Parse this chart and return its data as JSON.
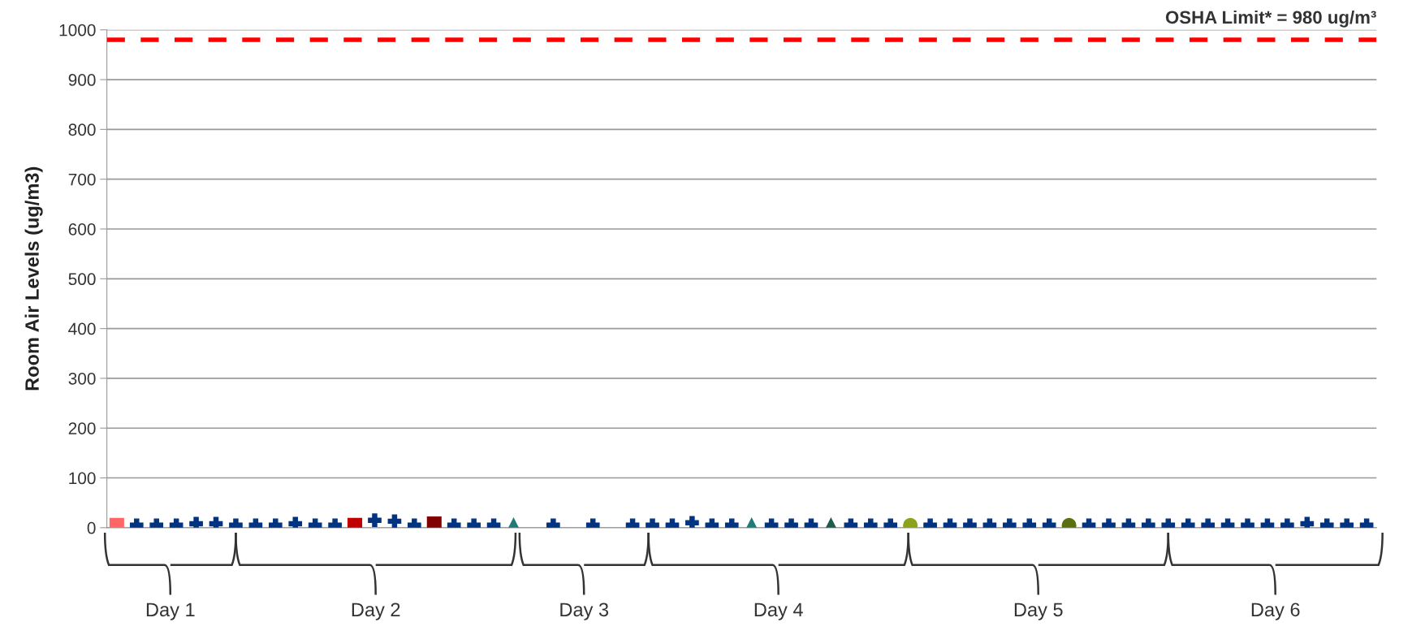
{
  "chart_data": {
    "type": "scatter",
    "ylabel": "Room Air Levels (ug/m3)",
    "categories": [
      null,
      null,
      null,
      null,
      null,
      null,
      null,
      null,
      null,
      null,
      null,
      null,
      null,
      null,
      null,
      null,
      null,
      null,
      null,
      null,
      null,
      null,
      null,
      null,
      null,
      null,
      null,
      null,
      null,
      null,
      null,
      null,
      null,
      null,
      null,
      null,
      null,
      null,
      null,
      null,
      null,
      null,
      null,
      null,
      null,
      null,
      null,
      null,
      null,
      null,
      null,
      null,
      null,
      null,
      null,
      null,
      null,
      null,
      null,
      null,
      null,
      null,
      null,
      null
    ],
    "ylim": [
      0,
      1000
    ],
    "yticks": [
      0,
      100,
      200,
      300,
      400,
      500,
      600,
      700,
      800,
      900,
      1000
    ],
    "grid": "y",
    "series": [
      {
        "color": "#003380",
        "marker": "cross",
        "values": [
          null,
          5,
          5,
          5,
          8,
          8,
          5,
          5,
          5,
          8,
          5,
          5,
          null,
          15,
          13,
          5,
          null,
          5,
          5,
          5,
          null,
          null,
          5,
          null,
          5,
          null,
          5,
          5,
          5,
          10,
          5,
          5,
          null,
          5,
          5,
          5,
          null,
          5,
          5,
          5,
          null,
          5,
          5,
          5,
          5,
          5,
          5,
          5,
          null,
          5,
          5,
          5,
          5,
          5,
          5,
          5,
          5,
          5,
          5,
          5,
          8,
          5,
          5,
          5
        ]
      },
      {
        "color": "#ff6666",
        "marker": "square",
        "values": [
          5,
          null,
          null,
          null,
          null,
          null,
          null,
          null,
          null,
          null,
          null,
          null,
          null,
          null,
          null,
          null,
          null,
          null,
          null,
          null,
          null,
          null,
          null,
          null,
          null,
          null,
          null,
          null,
          null,
          null,
          null,
          null,
          null,
          null,
          null,
          null,
          null,
          null,
          null,
          null,
          null,
          null,
          null,
          null,
          null,
          null,
          null,
          null,
          null,
          null,
          null,
          null,
          null,
          null,
          null,
          null,
          null,
          null,
          null,
          null,
          null,
          null,
          null,
          null
        ]
      },
      {
        "color": "#c00000",
        "marker": "square",
        "values": [
          null,
          null,
          null,
          null,
          null,
          null,
          null,
          null,
          null,
          null,
          null,
          null,
          5,
          null,
          null,
          null,
          null,
          null,
          null,
          null,
          null,
          null,
          null,
          null,
          null,
          null,
          null,
          null,
          null,
          null,
          null,
          null,
          null,
          null,
          null,
          null,
          null,
          null,
          null,
          null,
          null,
          null,
          null,
          null,
          null,
          null,
          null,
          null,
          null,
          null,
          null,
          null,
          null,
          null,
          null,
          null,
          null,
          null,
          null,
          null,
          null,
          null,
          null,
          null
        ]
      },
      {
        "color": "#800000",
        "marker": "square",
        "values": [
          null,
          null,
          null,
          null,
          null,
          null,
          null,
          null,
          null,
          null,
          null,
          null,
          null,
          null,
          null,
          null,
          8,
          null,
          null,
          null,
          null,
          null,
          null,
          null,
          null,
          null,
          null,
          null,
          null,
          null,
          null,
          null,
          null,
          null,
          null,
          null,
          null,
          null,
          null,
          null,
          null,
          null,
          null,
          null,
          null,
          null,
          null,
          null,
          null,
          null,
          null,
          null,
          null,
          null,
          null,
          null,
          null,
          null,
          null,
          null,
          null,
          null,
          null,
          null
        ]
      },
      {
        "color": "#1f7b78",
        "marker": "triangle",
        "values": [
          null,
          null,
          null,
          null,
          null,
          null,
          null,
          null,
          null,
          null,
          null,
          null,
          null,
          null,
          null,
          null,
          null,
          null,
          null,
          null,
          5,
          null,
          null,
          null,
          null,
          null,
          null,
          null,
          null,
          null,
          null,
          null,
          null,
          null,
          null,
          null,
          null,
          null,
          null,
          null,
          null,
          null,
          null,
          null,
          null,
          null,
          null,
          null,
          null,
          null,
          null,
          null,
          null,
          null,
          null,
          null,
          null,
          null,
          null,
          null,
          null,
          null,
          null,
          null
        ]
      },
      {
        "color": "#1f7b78",
        "marker": "triangle",
        "values": [
          null,
          null,
          null,
          null,
          null,
          null,
          null,
          null,
          null,
          null,
          null,
          null,
          null,
          null,
          null,
          null,
          null,
          null,
          null,
          null,
          null,
          null,
          null,
          null,
          null,
          null,
          null,
          null,
          null,
          null,
          null,
          null,
          5,
          null,
          null,
          null,
          null,
          null,
          null,
          null,
          null,
          null,
          null,
          null,
          null,
          null,
          null,
          null,
          null,
          null,
          null,
          null,
          null,
          null,
          null,
          null,
          null,
          null,
          null,
          null,
          null,
          null,
          null,
          null
        ]
      },
      {
        "color": "#1d5a50",
        "marker": "triangle",
        "values": [
          null,
          null,
          null,
          null,
          null,
          null,
          null,
          null,
          null,
          null,
          null,
          null,
          null,
          null,
          null,
          null,
          null,
          null,
          null,
          null,
          null,
          null,
          null,
          null,
          null,
          null,
          null,
          null,
          null,
          null,
          null,
          null,
          null,
          null,
          null,
          null,
          5,
          null,
          null,
          null,
          null,
          null,
          null,
          null,
          null,
          null,
          null,
          null,
          null,
          null,
          null,
          null,
          null,
          null,
          null,
          null,
          null,
          null,
          null,
          null,
          null,
          null,
          null,
          null
        ]
      },
      {
        "color": "#8ba31a",
        "marker": "circle",
        "values": [
          null,
          null,
          null,
          null,
          null,
          null,
          null,
          null,
          null,
          null,
          null,
          null,
          null,
          null,
          null,
          null,
          null,
          null,
          null,
          null,
          null,
          null,
          null,
          null,
          null,
          null,
          null,
          null,
          null,
          null,
          null,
          null,
          null,
          null,
          null,
          null,
          null,
          null,
          null,
          null,
          5,
          null,
          null,
          null,
          null,
          null,
          null,
          null,
          null,
          null,
          null,
          null,
          null,
          null,
          null,
          null,
          null,
          null,
          null,
          null,
          null,
          null,
          null,
          null
        ]
      },
      {
        "color": "#5a7010",
        "marker": "circle",
        "values": [
          null,
          null,
          null,
          null,
          null,
          null,
          null,
          null,
          null,
          null,
          null,
          null,
          null,
          null,
          null,
          null,
          null,
          null,
          null,
          null,
          null,
          null,
          null,
          null,
          null,
          null,
          null,
          null,
          null,
          null,
          null,
          null,
          null,
          null,
          null,
          null,
          null,
          null,
          null,
          null,
          null,
          null,
          null,
          null,
          null,
          null,
          null,
          null,
          5,
          null,
          null,
          null,
          null,
          null,
          null,
          null,
          null,
          null,
          null,
          null,
          null,
          null,
          null,
          null
        ]
      }
    ],
    "ref_lines": [
      {
        "axis": "y",
        "value": 980,
        "label": "OSHA Limit* = 980 ug/m³",
        "color": "#ff0000",
        "line_style": "dashed"
      }
    ],
    "annotations": [
      "Day 1",
      "Day 2",
      "Day 3",
      "Day 4",
      "Day 5",
      "Day 6"
    ]
  }
}
